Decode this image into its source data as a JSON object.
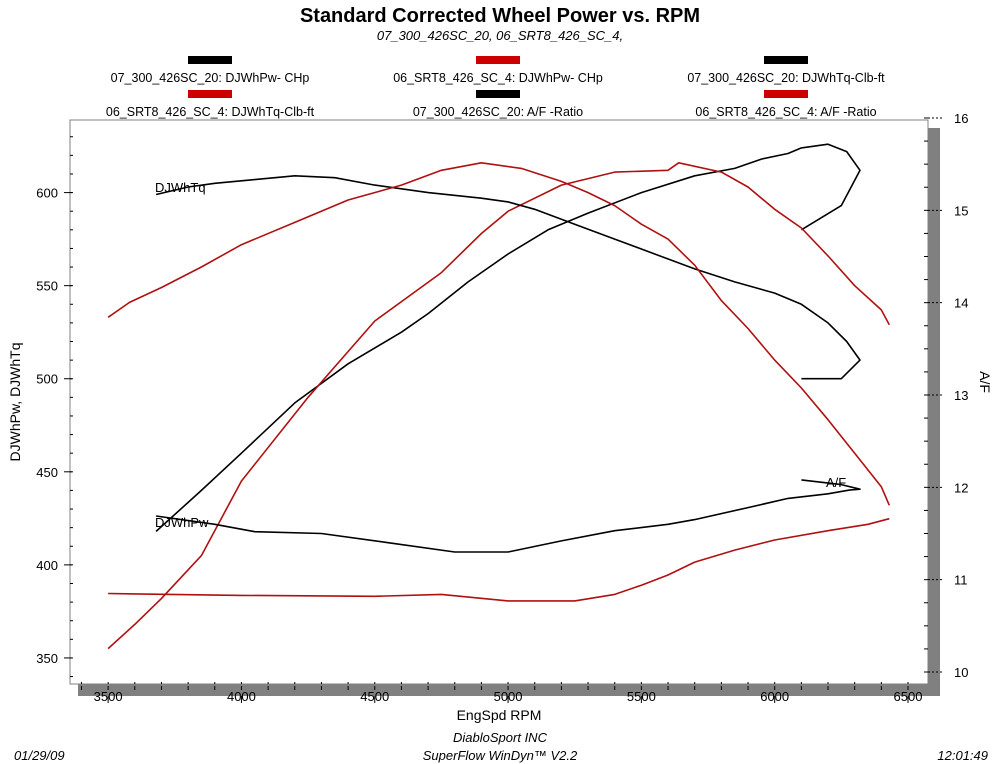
{
  "chart_data": {
    "type": "line",
    "title": "Standard Corrected Wheel Power vs. RPM",
    "subtitle": "07_300_426SC_20, 06_SRT8_426_SC_4,",
    "xlabel": "EngSpd  RPM",
    "ylabel": "DJWhPw, DJWhTq",
    "y2label": "A/F",
    "xlim": [
      3357,
      6575
    ],
    "ylim": [
      336,
      639
    ],
    "y2lim": [
      9.7,
      16.0
    ],
    "xticks": [
      "3500",
      "4000",
      "4500",
      "5000",
      "5500",
      "6000",
      "6500"
    ],
    "yticks": [
      "350",
      "400",
      "450",
      "500",
      "550",
      "600"
    ],
    "y2ticks": [
      "10",
      "11",
      "12",
      "13",
      "14",
      "15",
      "16"
    ],
    "grid": false,
    "legend_position": "top",
    "legend": [
      {
        "label": "07_300_426SC_20: DJWhPw- CHp",
        "color": "#000000"
      },
      {
        "label": "06_SRT8_426_SC_4: DJWhPw- CHp",
        "color": "#cc0000"
      },
      {
        "label": "07_300_426SC_20: DJWhTq-Clb-ft",
        "color": "#000000"
      },
      {
        "label": "06_SRT8_426_SC_4: DJWhTq-Clb-ft",
        "color": "#cc0000"
      },
      {
        "label": "07_300_426SC_20:  A/F  -Ratio",
        "color": "#000000"
      },
      {
        "label": "06_SRT8_426_SC_4:  A/F  -Ratio",
        "color": "#cc0000"
      }
    ],
    "curve_labels": [
      "DJWhTq",
      "DJWhPw",
      "A/F"
    ],
    "series": [
      {
        "name": "07_300_426SC_20: DJWhPw- CHp",
        "color": "#000000",
        "axis": "left",
        "points": [
          [
            3680,
            418
          ],
          [
            3850,
            440
          ],
          [
            4000,
            460
          ],
          [
            4200,
            487
          ],
          [
            4400,
            508
          ],
          [
            4600,
            525
          ],
          [
            4700,
            535
          ],
          [
            4850,
            552
          ],
          [
            5000,
            567
          ],
          [
            5150,
            580
          ],
          [
            5300,
            589
          ],
          [
            5500,
            600
          ],
          [
            5700,
            609
          ],
          [
            5850,
            613
          ],
          [
            5950,
            618
          ],
          [
            6050,
            621
          ],
          [
            6100,
            624
          ],
          [
            6200,
            626
          ],
          [
            6270,
            622
          ],
          [
            6320,
            612
          ],
          [
            6250,
            593
          ],
          [
            6100,
            580
          ]
        ]
      },
      {
        "name": "06_SRT8_426_SC_4: DJWhPw- CHp",
        "color": "#b01010",
        "axis": "left",
        "points": [
          [
            3500,
            355
          ],
          [
            3600,
            368
          ],
          [
            3700,
            382
          ],
          [
            3850,
            405
          ],
          [
            4000,
            445
          ],
          [
            4250,
            490
          ],
          [
            4500,
            531
          ],
          [
            4750,
            557
          ],
          [
            4900,
            578
          ],
          [
            5000,
            590
          ],
          [
            5200,
            604
          ],
          [
            5400,
            611
          ],
          [
            5600,
            612
          ],
          [
            5640,
            616
          ],
          [
            5800,
            611
          ],
          [
            5900,
            603
          ],
          [
            6000,
            591
          ],
          [
            6100,
            581
          ],
          [
            6200,
            566
          ],
          [
            6300,
            550
          ],
          [
            6400,
            537
          ],
          [
            6430,
            529
          ]
        ]
      },
      {
        "name": "07_300_426SC_20: DJWhTq-Clb-ft",
        "color": "#000000",
        "axis": "left",
        "points": [
          [
            3680,
            599
          ],
          [
            3800,
            603
          ],
          [
            3900,
            605
          ],
          [
            4050,
            607
          ],
          [
            4200,
            609
          ],
          [
            4350,
            608
          ],
          [
            4500,
            604
          ],
          [
            4700,
            600
          ],
          [
            4900,
            597
          ],
          [
            5000,
            595
          ],
          [
            5100,
            591
          ],
          [
            5250,
            583
          ],
          [
            5400,
            575
          ],
          [
            5550,
            567
          ],
          [
            5700,
            559
          ],
          [
            5850,
            552
          ],
          [
            6000,
            546
          ],
          [
            6100,
            540
          ],
          [
            6200,
            530
          ],
          [
            6270,
            520
          ],
          [
            6320,
            510
          ],
          [
            6250,
            500
          ],
          [
            6100,
            500
          ]
        ]
      },
      {
        "name": "06_SRT8_426_SC_4: DJWhTq-Clb-ft",
        "color": "#b01010",
        "axis": "left",
        "points": [
          [
            3500,
            533
          ],
          [
            3580,
            541
          ],
          [
            3700,
            549
          ],
          [
            3850,
            560
          ],
          [
            4000,
            572
          ],
          [
            4200,
            584
          ],
          [
            4400,
            596
          ],
          [
            4600,
            604
          ],
          [
            4750,
            612
          ],
          [
            4900,
            616
          ],
          [
            5050,
            613
          ],
          [
            5200,
            606
          ],
          [
            5300,
            600
          ],
          [
            5400,
            593
          ],
          [
            5500,
            583
          ],
          [
            5600,
            575
          ],
          [
            5700,
            561
          ],
          [
            5800,
            542
          ],
          [
            5900,
            527
          ],
          [
            6000,
            510
          ],
          [
            6100,
            495
          ],
          [
            6200,
            478
          ],
          [
            6300,
            460
          ],
          [
            6400,
            442
          ],
          [
            6430,
            432
          ]
        ]
      },
      {
        "name": "07_300_426SC_20:  A/F  -Ratio",
        "color": "#000000",
        "axis": "right",
        "points": [
          [
            3680,
            11.69
          ],
          [
            3900,
            11.6
          ],
          [
            4050,
            11.52
          ],
          [
            4300,
            11.5
          ],
          [
            4550,
            11.4
          ],
          [
            4800,
            11.3
          ],
          [
            5000,
            11.3
          ],
          [
            5200,
            11.42
          ],
          [
            5400,
            11.53
          ],
          [
            5600,
            11.6
          ],
          [
            5700,
            11.65
          ],
          [
            5900,
            11.78
          ],
          [
            6050,
            11.88
          ],
          [
            6200,
            11.93
          ],
          [
            6280,
            11.97
          ],
          [
            6320,
            11.98
          ],
          [
            6250,
            12.03
          ],
          [
            6100,
            12.08
          ]
        ]
      },
      {
        "name": "06_SRT8_426_SC_4:  A/F  -Ratio",
        "color": "#b01010",
        "axis": "right",
        "points": [
          [
            3500,
            10.85
          ],
          [
            4000,
            10.83
          ],
          [
            4500,
            10.82
          ],
          [
            4750,
            10.84
          ],
          [
            5000,
            10.77
          ],
          [
            5250,
            10.77
          ],
          [
            5400,
            10.84
          ],
          [
            5500,
            10.94
          ],
          [
            5600,
            11.05
          ],
          [
            5700,
            11.19
          ],
          [
            5850,
            11.32
          ],
          [
            6000,
            11.43
          ],
          [
            6200,
            11.53
          ],
          [
            6350,
            11.6
          ],
          [
            6430,
            11.66
          ]
        ]
      }
    ]
  },
  "footer": {
    "date": "01/29/09",
    "company": "DiabloSport INC",
    "software": "SuperFlow WinDyn™ V2.2",
    "time": "12:01:49"
  }
}
